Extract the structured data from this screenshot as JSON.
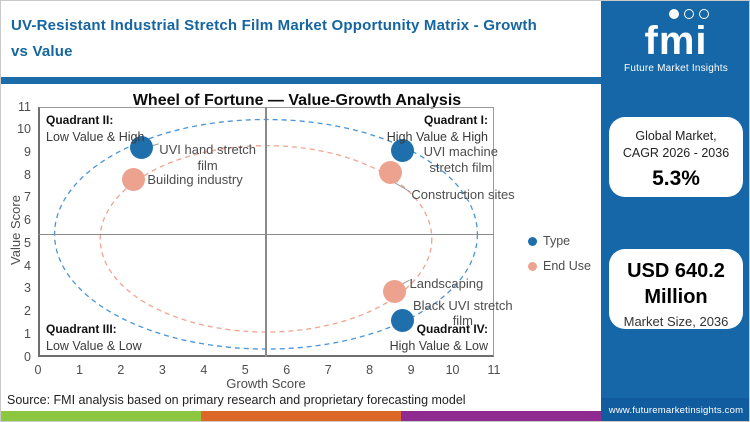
{
  "header": {
    "title": "UV-Resistant Industrial Stretch Film Market Opportunity Matrix - Growth vs Value"
  },
  "chart_data": {
    "type": "scatter",
    "title": "Wheel of Fortune — Value-Growth Analysis",
    "xlabel": "Growth Score",
    "ylabel": "Value Score",
    "xlim": [
      0,
      11
    ],
    "ylim": [
      0,
      11
    ],
    "x_ticks": [
      0,
      1,
      2,
      3,
      4,
      5,
      6,
      7,
      8,
      9,
      10,
      11
    ],
    "y_ticks": [
      0,
      1,
      2,
      3,
      4,
      5,
      6,
      7,
      8,
      9,
      10,
      11
    ],
    "grid": false,
    "legend_position": "right",
    "quadrant_dividers": {
      "x": 5.5,
      "y": 5.4
    },
    "quadrants": [
      {
        "label": "Quadrant I:",
        "desc": "High Value & High"
      },
      {
        "label": "Quadrant II:",
        "desc": "Low Value & High"
      },
      {
        "label": "Quadrant III:",
        "desc": "Low Value & Low"
      },
      {
        "label": "Quadrant IV:",
        "desc": "High Value & Low"
      }
    ],
    "series": [
      {
        "name": "Type",
        "color": "#1F6FAD",
        "points": [
          {
            "label": "UVI hand stretch film",
            "x": 2.5,
            "y": 9.2,
            "label_lines": [
              "UVI hand stretch",
              "film"
            ],
            "label_dx": 12,
            "label_dy": -6,
            "label_w": 108,
            "label_align": "center",
            "leader": [
              [
                10,
                -2
              ],
              [
                17,
                -4
              ]
            ]
          },
          {
            "label": "UVI machine stretch film",
            "x": 8.8,
            "y": 9.1,
            "label_lines": [
              "UVI machine",
              "stretch film"
            ],
            "label_dx": 5,
            "label_dy": -6,
            "label_w": 106,
            "label_align": "center"
          },
          {
            "label": "Black UVI stretch film",
            "x": 8.8,
            "y": 1.6,
            "label_lines": [
              "Black UVI stretch",
              "film"
            ],
            "label_dx": 5,
            "label_dy": -23,
            "label_w": 110,
            "label_align": "center"
          }
        ]
      },
      {
        "name": "End Use",
        "color": "#EDA28F",
        "points": [
          {
            "label": "Building industry",
            "x": 2.3,
            "y": 7.8,
            "label_lines": [
              "Building industry"
            ],
            "label_dx": 14,
            "label_dy": -8,
            "label_w": 130,
            "label_align": "left"
          },
          {
            "label": "Construction sites",
            "x": 8.5,
            "y": 8.1,
            "label_lines": [
              "Construction sites"
            ],
            "label_dx": 21,
            "label_dy": 14,
            "label_w": 130,
            "label_align": "left",
            "leader": [
              [
                3,
                9
              ],
              [
                20,
                19
              ]
            ]
          },
          {
            "label": "Landscaping",
            "x": 8.6,
            "y": 2.9,
            "label_lines": [
              "Landscaping"
            ],
            "label_dx": 15,
            "label_dy": -15,
            "label_w": 110,
            "label_align": "left",
            "leader": [
              [
                6,
                -6
              ],
              [
                15,
                -11
              ]
            ]
          }
        ]
      }
    ],
    "ellipses": [
      {
        "name": "type-ring",
        "color": "#4A94D8",
        "cx": 5.5,
        "cy": 5.4,
        "rx": 5.1,
        "ry": 5.05
      },
      {
        "name": "enduse-ring",
        "color": "#F0A48F",
        "cx": 5.5,
        "cy": 5.2,
        "rx": 4.0,
        "ry": 4.1
      }
    ],
    "legend": [
      {
        "label": "Type",
        "color": "#1F6FAD"
      },
      {
        "label": "End Use",
        "color": "#EDA28F"
      }
    ]
  },
  "sidebar": {
    "logo": {
      "brand": "fmi",
      "tagline": "Future Market Insights"
    },
    "cards": {
      "cagr": {
        "line1": "Global Market,",
        "line2": "CAGR 2026 - 2036",
        "value": "5.3%"
      },
      "size": {
        "line1": "USD 640.2",
        "line2": "Million",
        "caption": "Market Size, 2036"
      }
    },
    "website": "www.futuremarketinsights.com"
  },
  "footer": {
    "source": "Source: FMI analysis based on primary research and proprietary forecasting model"
  },
  "colors": {
    "brand_blue": "#1667A8",
    "title_blue": "#1565A0",
    "divider_blue": "#1B6CA8",
    "website_band_blue": "#115C9E",
    "axis_gray": "#8A8A8A",
    "label_gray": "#4D4D4D",
    "footer_bar": [
      "#8DC63F",
      "#DD6727",
      "#8F2A90"
    ]
  }
}
